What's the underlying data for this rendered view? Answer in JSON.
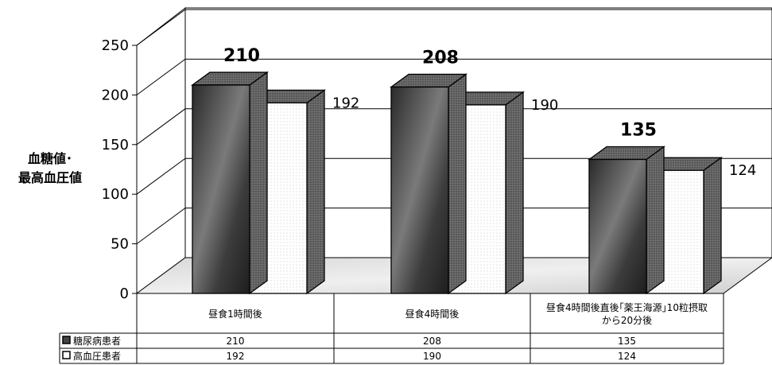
{
  "chart_data": {
    "type": "bar",
    "ylabel_lines": [
      "血糖値･",
      "最高血圧値"
    ],
    "ylim": [
      0,
      250
    ],
    "yticks": [
      0,
      50,
      100,
      150,
      200,
      250
    ],
    "categories": [
      "昼食1時間後",
      "昼食4時間後",
      "昼食4時間後直後｢薬王海源｣10粒摂取から20分後"
    ],
    "category_lines": [
      [
        "昼食1時間後"
      ],
      [
        "昼食4時間後"
      ],
      [
        "昼食4時間後直後｢薬王海源｣10粒摂取",
        "から20分後"
      ]
    ],
    "series": [
      {
        "name": "糖尿病患者",
        "values": [
          210,
          208,
          135
        ],
        "color": "#555555"
      },
      {
        "name": "高血圧患者",
        "values": [
          192,
          190,
          124
        ],
        "color": "#ffffff"
      }
    ],
    "grid": true,
    "legend": "table-left"
  }
}
